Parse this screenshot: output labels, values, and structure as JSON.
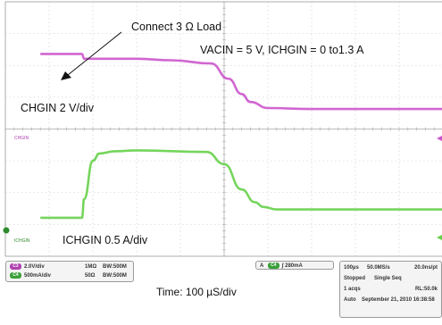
{
  "annotations": {
    "load_text": "Connect 3 Ω Load",
    "conditions": "VACIN = 5 V, ICHGIN = 0 to1.3  A",
    "chgin_scale": "CHGIN 2 V/div",
    "ichgin_scale": "ICHGIN 0.5 A/div",
    "time_scale": "Time: 100 µS/div"
  },
  "scope": {
    "ch_markers": [
      "CHGIN",
      "ICHGIN"
    ],
    "channels": [
      {
        "tag": "C3",
        "scale": "2.0V/div",
        "impedance": "1MΩ",
        "bw": "BW:500M",
        "color": "#b040b0"
      },
      {
        "tag": "C4",
        "scale": "500mA/div",
        "impedance": "50Ω",
        "bw": "BW:500M",
        "color": "#3aa03a"
      }
    ],
    "trigger": {
      "prefix": "A",
      "channel": "C4",
      "level": "280mA"
    },
    "acquisition": {
      "timebase": "100µs",
      "sample_rate": "50.0MS/s",
      "per_point": "20.0ns/pt",
      "state": "Stopped",
      "mode": "Single Seq",
      "acqs": "1 acqs",
      "record_length": "RL:50.0k",
      "auto": "Auto",
      "date": "September 21, 2010 16:38:58"
    }
  },
  "colors": {
    "chgin": "#cc55cc",
    "ichgin": "#66d04a",
    "grid": "#c8c8c8",
    "screen": "#ffffff"
  },
  "chart_data": {
    "type": "line",
    "title": "",
    "xlabel": "Time: 100 µS/div",
    "ylabel": "",
    "x_divisions": 10,
    "y_divisions": 8,
    "x_unit": "µs",
    "series": [
      {
        "name": "CHGIN",
        "scale_per_div": "2 V/div",
        "x": [
          -420,
          -325,
          -320,
          -200,
          -120,
          -30,
          10,
          40,
          60,
          100,
          200,
          580
        ],
        "y_div": [
          2.36,
          2.36,
          2.21,
          2.21,
          2.16,
          2.06,
          1.58,
          1.1,
          0.85,
          0.66,
          0.63,
          0.63
        ]
      },
      {
        "name": "ICHGIN",
        "scale_per_div": "0.5 A/div",
        "x": [
          -420,
          -325,
          -320,
          -300,
          -285,
          -250,
          -200,
          -40,
          0,
          40,
          70,
          90,
          120,
          200,
          580
        ],
        "y_div": [
          -2.79,
          -2.79,
          -2.2,
          -1.0,
          -0.77,
          -0.7,
          -0.67,
          -0.72,
          -1.1,
          -1.9,
          -2.3,
          -2.45,
          -2.53,
          -2.53,
          -2.53
        ]
      }
    ]
  }
}
